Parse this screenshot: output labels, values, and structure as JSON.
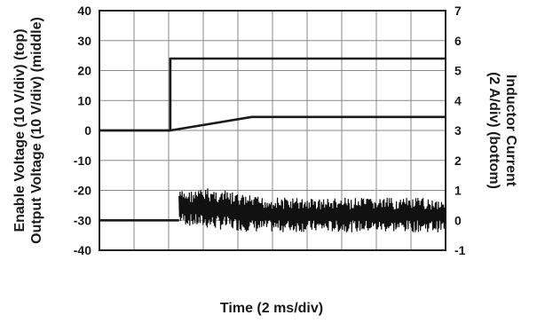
{
  "chart_data": {
    "type": "line",
    "x_divisions": 10,
    "y_divisions": 8,
    "grid": true,
    "left_axis": {
      "label_line1": "Enable Voltage (10 V/div) (top)",
      "label_line2": "Output Voltage (10 V/div) (middle)",
      "ylim": [
        -40,
        40
      ],
      "ticks": [
        "40",
        "30",
        "20",
        "10",
        "0",
        "-10",
        "-20",
        "-30",
        "-40"
      ]
    },
    "right_axis": {
      "label_line1": "Inductor Current",
      "label_line2": "(2 A/div) (bottom)",
      "ylim": [
        -1,
        7
      ],
      "ticks": [
        "7",
        "6",
        "5",
        "4",
        "3",
        "2",
        "1",
        "0",
        "-1"
      ]
    },
    "xlabel": "Time (2 ms/div)",
    "series": [
      {
        "name": "Enable Voltage",
        "axis": "left",
        "x": [
          0,
          2.05,
          2.05,
          10
        ],
        "y": [
          0,
          0,
          24,
          24
        ]
      },
      {
        "name": "Output Voltage",
        "axis": "left",
        "x": [
          0,
          2.05,
          4.4,
          10
        ],
        "y": [
          0,
          0,
          4.5,
          4.5
        ]
      },
      {
        "name": "Inductor Current",
        "axis": "right",
        "baseline_x": [
          0,
          2.3
        ],
        "baseline_y": [
          0,
          0
        ],
        "ripple_start_x": 2.3,
        "ripple_end_x": 10,
        "envelope_x": [
          2.3,
          2.6,
          3.2,
          4.0,
          4.5,
          6.0,
          8.0,
          10.0
        ],
        "envelope_high": [
          1.0,
          1.0,
          1.1,
          0.9,
          0.8,
          0.75,
          0.75,
          0.75
        ],
        "envelope_low": [
          -0.1,
          -0.2,
          -0.3,
          -0.35,
          -0.4,
          -0.4,
          -0.4,
          -0.4
        ]
      }
    ]
  }
}
